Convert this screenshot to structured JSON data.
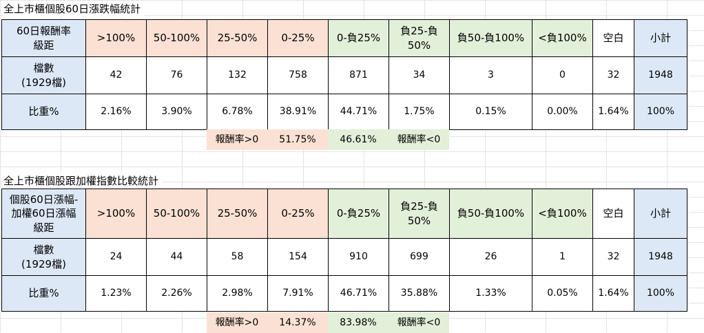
{
  "columns": [
    ">100%",
    "50-100%",
    "25-50%",
    "0-25%",
    "0-負25%",
    "負25-負50%",
    "負50-負100%",
    "<負100%",
    "空白",
    "小計"
  ],
  "column_colors": [
    "pink",
    "pink",
    "pink",
    "pink",
    "green",
    "green",
    "green",
    "green",
    "white",
    "blue"
  ],
  "colors": {
    "blue": "#dde8f6",
    "pink": "#fbe1d4",
    "green": "#e2efd9",
    "white": "#ffffff"
  },
  "table1": {
    "title": "全上市櫃個股60日漲跌幅統計",
    "header_label": [
      "60日報酬率",
      "級距"
    ],
    "rows": [
      {
        "label": [
          "檔數",
          "(1929檔)"
        ],
        "values": [
          "42",
          "76",
          "132",
          "758",
          "871",
          "34",
          "3",
          "0",
          "32",
          "1948"
        ]
      },
      {
        "label": [
          "比重%"
        ],
        "values": [
          "2.16%",
          "3.90%",
          "6.78%",
          "38.91%",
          "44.71%",
          "1.75%",
          "0.15%",
          "0.00%",
          "1.64%",
          "100%"
        ]
      }
    ],
    "summary": {
      "positive_label": "報酬率>0",
      "positive_value": "51.75%",
      "negative_value": "46.61%",
      "negative_label": "報酬率<0"
    }
  },
  "table2": {
    "title": "全上市櫃個股跟加權指數比較統計",
    "header_label": [
      "個股60日漲幅-",
      "加權60日漲幅",
      "級距"
    ],
    "rows": [
      {
        "label": [
          "檔數",
          "(1929檔)"
        ],
        "values": [
          "24",
          "44",
          "58",
          "154",
          "910",
          "699",
          "26",
          "1",
          "32",
          "1948"
        ]
      },
      {
        "label": [
          "比重%"
        ],
        "values": [
          "1.23%",
          "2.26%",
          "2.98%",
          "7.91%",
          "46.71%",
          "35.88%",
          "1.33%",
          "0.05%",
          "1.64%",
          "100%"
        ]
      }
    ],
    "summary": {
      "positive_label": "報酬率>0",
      "positive_value": "14.37%",
      "negative_value": "83.98%",
      "negative_label": "報酬率<0"
    }
  }
}
